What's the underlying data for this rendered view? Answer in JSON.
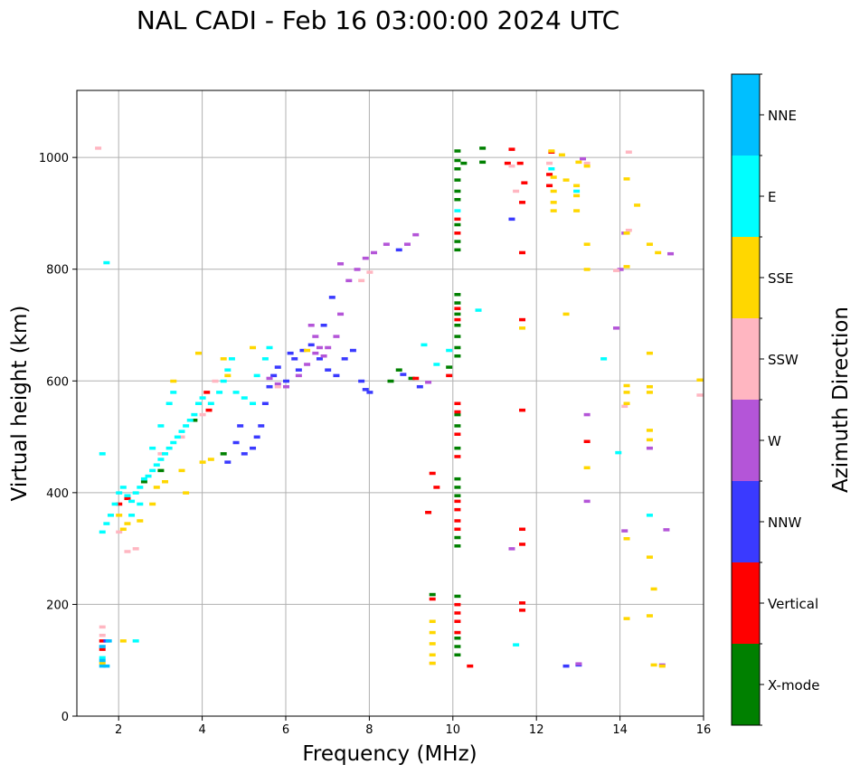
{
  "chart_data": {
    "type": "scatter",
    "title": "NAL CADI - Feb 16 03:00:00 2024 UTC",
    "xlabel": "Frequency (MHz)",
    "ylabel": "Virtual height (km)",
    "xlim": [
      1,
      16
    ],
    "ylim": [
      0,
      1120
    ],
    "xticks": [
      2,
      4,
      6,
      8,
      10,
      12,
      14,
      16
    ],
    "yticks": [
      0,
      200,
      400,
      600,
      800,
      1000
    ],
    "xtick_labels": [
      "2",
      "4",
      "6",
      "8",
      "10",
      "12",
      "14",
      "16"
    ],
    "ytick_labels": [
      "0",
      "200",
      "400",
      "600",
      "800",
      "1000"
    ],
    "grid": true,
    "colorbar": {
      "label": "Azimuth Direction",
      "categories": [
        {
          "name": "X-mode",
          "color": "#008000"
        },
        {
          "name": "Vertical",
          "color": "#ff0000"
        },
        {
          "name": "NNW",
          "color": "#3a3aff"
        },
        {
          "name": "W",
          "color": "#b455d8"
        },
        {
          "name": "SSW",
          "color": "#ffb6c1"
        },
        {
          "name": "SSE",
          "color": "#ffd700"
        },
        {
          "name": "E",
          "color": "#00ffff"
        },
        {
          "name": "NNE",
          "color": "#00bfff"
        }
      ]
    },
    "series": [
      {
        "name": "X-mode",
        "points": [
          [
            10.1,
            1012
          ],
          [
            10.1,
            995
          ],
          [
            10.1,
            980
          ],
          [
            10.1,
            960
          ],
          [
            10.1,
            940
          ],
          [
            10.1,
            925
          ],
          [
            10.1,
            880
          ],
          [
            10.1,
            850
          ],
          [
            10.1,
            835
          ],
          [
            10.1,
            755
          ],
          [
            10.1,
            740
          ],
          [
            10.1,
            720
          ],
          [
            10.1,
            700
          ],
          [
            10.1,
            680
          ],
          [
            10.1,
            660
          ],
          [
            10.1,
            645
          ],
          [
            10.1,
            540
          ],
          [
            10.1,
            520
          ],
          [
            10.1,
            480
          ],
          [
            10.1,
            425
          ],
          [
            10.1,
            410
          ],
          [
            10.1,
            395
          ],
          [
            10.1,
            320
          ],
          [
            10.1,
            305
          ],
          [
            10.1,
            215
          ],
          [
            10.1,
            140
          ],
          [
            10.1,
            125
          ],
          [
            10.1,
            110
          ],
          [
            10.25,
            990
          ],
          [
            10.7,
            1017
          ],
          [
            10.7,
            992
          ],
          [
            9.5,
            218
          ],
          [
            8.7,
            620
          ],
          [
            9.0,
            605
          ],
          [
            8.5,
            600
          ],
          [
            9.9,
            625
          ],
          [
            3.0,
            440
          ],
          [
            2.6,
            420
          ],
          [
            3.8,
            530
          ],
          [
            4.5,
            470
          ]
        ]
      },
      {
        "name": "Vertical",
        "points": [
          [
            10.1,
            890
          ],
          [
            10.1,
            865
          ],
          [
            10.1,
            730
          ],
          [
            10.1,
            710
          ],
          [
            10.1,
            560
          ],
          [
            10.1,
            545
          ],
          [
            10.1,
            505
          ],
          [
            10.1,
            465
          ],
          [
            10.1,
            385
          ],
          [
            10.1,
            370
          ],
          [
            10.1,
            350
          ],
          [
            10.1,
            335
          ],
          [
            10.1,
            200
          ],
          [
            10.1,
            185
          ],
          [
            10.1,
            170
          ],
          [
            10.1,
            150
          ],
          [
            10.4,
            90
          ],
          [
            11.65,
            920
          ],
          [
            11.65,
            830
          ],
          [
            11.65,
            710
          ],
          [
            11.65,
            548
          ],
          [
            11.65,
            335
          ],
          [
            11.65,
            308
          ],
          [
            11.65,
            203
          ],
          [
            11.65,
            190
          ],
          [
            11.4,
            1015
          ],
          [
            11.3,
            990
          ],
          [
            11.6,
            990
          ],
          [
            12.35,
            1010
          ],
          [
            12.3,
            970
          ],
          [
            11.7,
            955
          ],
          [
            12.3,
            950
          ],
          [
            13.2,
            492
          ],
          [
            9.5,
            210
          ],
          [
            9.1,
            605
          ],
          [
            9.6,
            410
          ],
          [
            9.5,
            435
          ],
          [
            9.4,
            365
          ],
          [
            9.9,
            610
          ],
          [
            4.1,
            580
          ],
          [
            4.15,
            548
          ],
          [
            2.0,
            380
          ],
          [
            2.2,
            390
          ],
          [
            1.6,
            120
          ],
          [
            1.6,
            135
          ]
        ]
      },
      {
        "name": "NNW",
        "points": [
          [
            5.2,
            480
          ],
          [
            5.3,
            500
          ],
          [
            5.4,
            520
          ],
          [
            5.5,
            560
          ],
          [
            5.6,
            590
          ],
          [
            5.7,
            610
          ],
          [
            5.8,
            625
          ],
          [
            6.2,
            640
          ],
          [
            6.3,
            620
          ],
          [
            6.4,
            655
          ],
          [
            6.6,
            665
          ],
          [
            6.8,
            640
          ],
          [
            7.0,
            620
          ],
          [
            7.2,
            610
          ],
          [
            6.9,
            700
          ],
          [
            7.1,
            750
          ],
          [
            7.4,
            640
          ],
          [
            7.6,
            655
          ],
          [
            7.8,
            600
          ],
          [
            7.9,
            585
          ],
          [
            8.0,
            580
          ],
          [
            6.1,
            650
          ],
          [
            6.0,
            600
          ],
          [
            5.0,
            470
          ],
          [
            4.8,
            490
          ],
          [
            4.6,
            455
          ],
          [
            4.9,
            520
          ],
          [
            8.7,
            835
          ],
          [
            8.8,
            612
          ],
          [
            9.2,
            590
          ],
          [
            12.7,
            90
          ],
          [
            13.0,
            92
          ],
          [
            11.4,
            890
          ],
          [
            1.7,
            135
          ]
        ]
      },
      {
        "name": "W",
        "points": [
          [
            6.6,
            700
          ],
          [
            6.7,
            680
          ],
          [
            6.8,
            660
          ],
          [
            6.9,
            645
          ],
          [
            6.5,
            630
          ],
          [
            6.3,
            610
          ],
          [
            6.0,
            590
          ],
          [
            5.8,
            595
          ],
          [
            5.6,
            605
          ],
          [
            6.7,
            650
          ],
          [
            7.0,
            660
          ],
          [
            7.2,
            680
          ],
          [
            7.3,
            720
          ],
          [
            7.5,
            780
          ],
          [
            7.7,
            800
          ],
          [
            7.9,
            820
          ],
          [
            8.1,
            830
          ],
          [
            7.3,
            810
          ],
          [
            8.4,
            845
          ],
          [
            8.9,
            845
          ],
          [
            9.1,
            862
          ],
          [
            9.4,
            598
          ],
          [
            13.1,
            998
          ],
          [
            14.0,
            800
          ],
          [
            14.1,
            865
          ],
          [
            13.9,
            695
          ],
          [
            13.2,
            540
          ],
          [
            13.2,
            385
          ],
          [
            14.1,
            332
          ],
          [
            14.7,
            480
          ],
          [
            15.1,
            334
          ],
          [
            15.2,
            828
          ],
          [
            11.4,
            300
          ],
          [
            13.0,
            94
          ],
          [
            15.0,
            92
          ]
        ]
      },
      {
        "name": "SSW",
        "points": [
          [
            1.5,
            1017
          ],
          [
            1.6,
            160
          ],
          [
            1.6,
            145
          ],
          [
            1.6,
            125
          ],
          [
            2.4,
            300
          ],
          [
            2.2,
            295
          ],
          [
            3.0,
            470
          ],
          [
            3.5,
            500
          ],
          [
            4.0,
            540
          ],
          [
            4.3,
            600
          ],
          [
            5.8,
            590
          ],
          [
            7.8,
            780
          ],
          [
            8.0,
            795
          ],
          [
            11.5,
            940
          ],
          [
            11.4,
            985
          ],
          [
            12.3,
            990
          ],
          [
            13.2,
            990
          ],
          [
            14.2,
            1010
          ],
          [
            14.2,
            870
          ],
          [
            13.9,
            798
          ],
          [
            14.1,
            555
          ],
          [
            15.9,
            575
          ],
          [
            9.5,
            95
          ],
          [
            2.0,
            330
          ]
        ]
      },
      {
        "name": "SSE",
        "points": [
          [
            9.5,
            170
          ],
          [
            9.5,
            150
          ],
          [
            9.5,
            130
          ],
          [
            9.5,
            110
          ],
          [
            9.5,
            95
          ],
          [
            12.35,
            1012
          ],
          [
            12.6,
            1005
          ],
          [
            13.0,
            992
          ],
          [
            13.2,
            985
          ],
          [
            12.4,
            965
          ],
          [
            12.7,
            960
          ],
          [
            12.95,
            950
          ],
          [
            12.4,
            940
          ],
          [
            12.95,
            932
          ],
          [
            12.4,
            920
          ],
          [
            12.4,
            905
          ],
          [
            12.95,
            905
          ],
          [
            12.7,
            720
          ],
          [
            13.2,
            845
          ],
          [
            13.2,
            800
          ],
          [
            14.15,
            962
          ],
          [
            14.15,
            865
          ],
          [
            14.15,
            805
          ],
          [
            14.4,
            915
          ],
          [
            14.7,
            845
          ],
          [
            14.9,
            830
          ],
          [
            14.15,
            592
          ],
          [
            14.15,
            580
          ],
          [
            14.15,
            560
          ],
          [
            14.7,
            650
          ],
          [
            14.7,
            590
          ],
          [
            14.7,
            580
          ],
          [
            14.7,
            512
          ],
          [
            14.7,
            495
          ],
          [
            14.7,
            285
          ],
          [
            14.8,
            228
          ],
          [
            14.7,
            180
          ],
          [
            14.15,
            318
          ],
          [
            14.15,
            175
          ],
          [
            14.8,
            92
          ],
          [
            15.0,
            90
          ],
          [
            15.9,
            602
          ],
          [
            13.2,
            445
          ],
          [
            11.65,
            695
          ],
          [
            3.3,
            600
          ],
          [
            3.9,
            650
          ],
          [
            4.5,
            640
          ],
          [
            4.2,
            460
          ],
          [
            4.0,
            455
          ],
          [
            3.5,
            440
          ],
          [
            2.9,
            410
          ],
          [
            2.5,
            350
          ],
          [
            2.2,
            345
          ],
          [
            2.1,
            335
          ],
          [
            2.0,
            360
          ],
          [
            3.6,
            400
          ],
          [
            3.1,
            420
          ],
          [
            2.8,
            380
          ],
          [
            4.6,
            610
          ],
          [
            5.2,
            660
          ],
          [
            6.5,
            655
          ],
          [
            2.1,
            135
          ],
          [
            1.6,
            95
          ]
        ]
      },
      {
        "name": "E",
        "points": [
          [
            1.6,
            470
          ],
          [
            1.6,
            330
          ],
          [
            1.7,
            345
          ],
          [
            1.8,
            360
          ],
          [
            1.9,
            380
          ],
          [
            2.0,
            400
          ],
          [
            2.1,
            410
          ],
          [
            2.2,
            395
          ],
          [
            2.3,
            385
          ],
          [
            2.4,
            400
          ],
          [
            2.5,
            410
          ],
          [
            2.6,
            425
          ],
          [
            2.7,
            430
          ],
          [
            2.8,
            440
          ],
          [
            2.9,
            450
          ],
          [
            3.0,
            460
          ],
          [
            3.1,
            470
          ],
          [
            3.2,
            480
          ],
          [
            3.3,
            490
          ],
          [
            3.4,
            500
          ],
          [
            3.5,
            510
          ],
          [
            3.6,
            520
          ],
          [
            3.7,
            530
          ],
          [
            3.8,
            540
          ],
          [
            3.9,
            560
          ],
          [
            4.0,
            570
          ],
          [
            4.2,
            560
          ],
          [
            4.4,
            580
          ],
          [
            4.5,
            600
          ],
          [
            4.6,
            620
          ],
          [
            4.7,
            640
          ],
          [
            4.8,
            580
          ],
          [
            5.0,
            570
          ],
          [
            5.2,
            560
          ],
          [
            5.3,
            610
          ],
          [
            5.5,
            640
          ],
          [
            5.6,
            660
          ],
          [
            3.2,
            560
          ],
          [
            3.3,
            580
          ],
          [
            3.0,
            520
          ],
          [
            2.8,
            480
          ],
          [
            2.5,
            380
          ],
          [
            2.3,
            360
          ],
          [
            1.7,
            812
          ],
          [
            9.3,
            665
          ],
          [
            9.6,
            630
          ],
          [
            9.9,
            655
          ],
          [
            10.1,
            905
          ],
          [
            10.6,
            727
          ],
          [
            11.5,
            128
          ],
          [
            12.35,
            980
          ],
          [
            12.95,
            940
          ],
          [
            13.6,
            640
          ],
          [
            13.95,
            472
          ],
          [
            14.7,
            360
          ],
          [
            2.4,
            135
          ],
          [
            1.6,
            105
          ]
        ]
      },
      {
        "name": "NNE",
        "points": [
          [
            1.6,
            125
          ],
          [
            1.6,
            100
          ],
          [
            1.75,
            135
          ],
          [
            1.7,
            90
          ],
          [
            1.6,
            90
          ]
        ]
      }
    ]
  }
}
